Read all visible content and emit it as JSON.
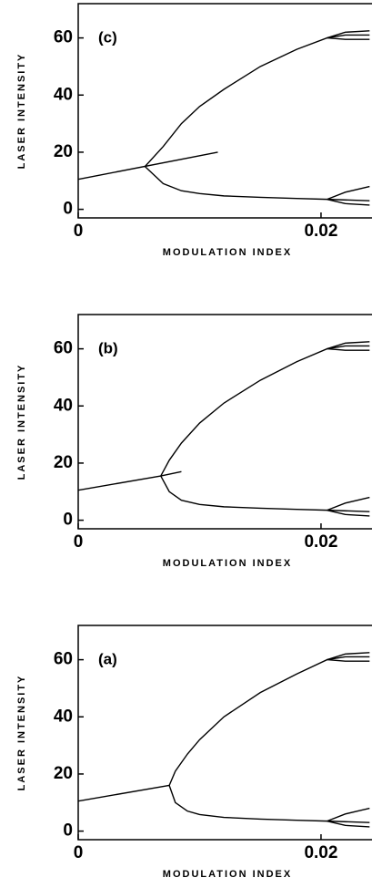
{
  "chart_data": [
    {
      "type": "line",
      "annotation": "(c)",
      "xlabel": "MODULATION INDEX",
      "ylabel": "LASER INTENSITY",
      "xlim": [
        0,
        0.0242
      ],
      "ylim": [
        -3,
        72
      ],
      "xticks": [
        0,
        0.02
      ],
      "yticks": [
        0,
        20,
        40,
        60
      ],
      "series": [
        {
          "color": "#000",
          "x": [
            0,
            0.0115
          ],
          "values": [
            10.5,
            20
          ]
        },
        {
          "color": "#000",
          "x": [
            0.0055,
            0.007,
            0.0085,
            0.01,
            0.012,
            0.015,
            0.018,
            0.0205,
            0.022,
            0.024
          ],
          "values": [
            15,
            22,
            30,
            36,
            42,
            50,
            56,
            60,
            61,
            61
          ]
        },
        {
          "color": "#000",
          "x": [
            0.0055,
            0.007,
            0.0085,
            0.01,
            0.012,
            0.015,
            0.018,
            0.0205,
            0.024
          ],
          "values": [
            15,
            9,
            6.5,
            5.5,
            4.7,
            4.2,
            3.8,
            3.5,
            3
          ]
        },
        {
          "color": "#000",
          "x": [
            0.0205,
            0.022,
            0.024
          ],
          "values": [
            60,
            62,
            62.5
          ]
        },
        {
          "color": "#000",
          "x": [
            0.0205,
            0.022,
            0.024
          ],
          "values": [
            60,
            59.5,
            59.5
          ]
        },
        {
          "color": "#000",
          "x": [
            0.0205,
            0.022,
            0.024
          ],
          "values": [
            3.5,
            6,
            8
          ]
        },
        {
          "color": "#000",
          "x": [
            0.0205,
            0.022,
            0.024
          ],
          "values": [
            3.5,
            2,
            1.5
          ]
        }
      ]
    },
    {
      "type": "line",
      "annotation": "(b)",
      "xlabel": "MODULATION INDEX",
      "ylabel": "LASER INTENSITY",
      "xlim": [
        0,
        0.0242
      ],
      "ylim": [
        -3,
        72
      ],
      "xticks": [
        0,
        0.02
      ],
      "yticks": [
        0,
        20,
        40,
        60
      ],
      "series": [
        {
          "color": "#000",
          "x": [
            0,
            0.0068,
            0.0085
          ],
          "values": [
            10.5,
            15.5,
            17
          ]
        },
        {
          "color": "#000",
          "x": [
            0.0068,
            0.0075,
            0.0085,
            0.01,
            0.012,
            0.015,
            0.018,
            0.0205,
            0.022,
            0.024
          ],
          "values": [
            15.5,
            21,
            27,
            34,
            41,
            49,
            55.5,
            60,
            61,
            61
          ]
        },
        {
          "color": "#000",
          "x": [
            0.0068,
            0.0075,
            0.0085,
            0.01,
            0.012,
            0.015,
            0.018,
            0.0205,
            0.024
          ],
          "values": [
            15.5,
            10,
            7,
            5.5,
            4.7,
            4.2,
            3.8,
            3.5,
            3
          ]
        },
        {
          "color": "#000",
          "x": [
            0.0205,
            0.022,
            0.024
          ],
          "values": [
            60,
            62,
            62.5
          ]
        },
        {
          "color": "#000",
          "x": [
            0.0205,
            0.022,
            0.024
          ],
          "values": [
            60,
            59.5,
            59.5
          ]
        },
        {
          "color": "#000",
          "x": [
            0.0205,
            0.022,
            0.024
          ],
          "values": [
            3.5,
            6,
            8
          ]
        },
        {
          "color": "#000",
          "x": [
            0.0205,
            0.022,
            0.024
          ],
          "values": [
            3.5,
            2,
            1.5
          ]
        }
      ]
    },
    {
      "type": "line",
      "annotation": "(a)",
      "xlabel": "MODULATION INDEX",
      "ylabel": "LASER INTENSITY",
      "xlim": [
        0,
        0.0242
      ],
      "ylim": [
        -3,
        72
      ],
      "xticks": [
        0,
        0.02
      ],
      "yticks": [
        0,
        20,
        40,
        60
      ],
      "series": [
        {
          "color": "#000",
          "x": [
            0,
            0.0075
          ],
          "values": [
            10.5,
            16
          ]
        },
        {
          "color": "#000",
          "x": [
            0.0075,
            0.008,
            0.009,
            0.01,
            0.012,
            0.015,
            0.018,
            0.0205,
            0.022,
            0.024
          ],
          "values": [
            16,
            21,
            27,
            32,
            40,
            48.5,
            55,
            60,
            61,
            61
          ]
        },
        {
          "color": "#000",
          "x": [
            0.0075,
            0.008,
            0.009,
            0.01,
            0.012,
            0.015,
            0.018,
            0.0205,
            0.024
          ],
          "values": [
            16,
            10,
            7,
            5.8,
            4.8,
            4.2,
            3.8,
            3.5,
            3
          ]
        },
        {
          "color": "#000",
          "x": [
            0.0205,
            0.022,
            0.024
          ],
          "values": [
            60,
            62,
            62.5
          ]
        },
        {
          "color": "#000",
          "x": [
            0.0205,
            0.022,
            0.024
          ],
          "values": [
            60,
            59.5,
            59.5
          ]
        },
        {
          "color": "#000",
          "x": [
            0.0205,
            0.022,
            0.024
          ],
          "values": [
            3.5,
            6,
            8
          ]
        },
        {
          "color": "#000",
          "x": [
            0.0205,
            0.022,
            0.024
          ],
          "values": [
            3.5,
            2,
            1.5
          ]
        }
      ]
    }
  ]
}
